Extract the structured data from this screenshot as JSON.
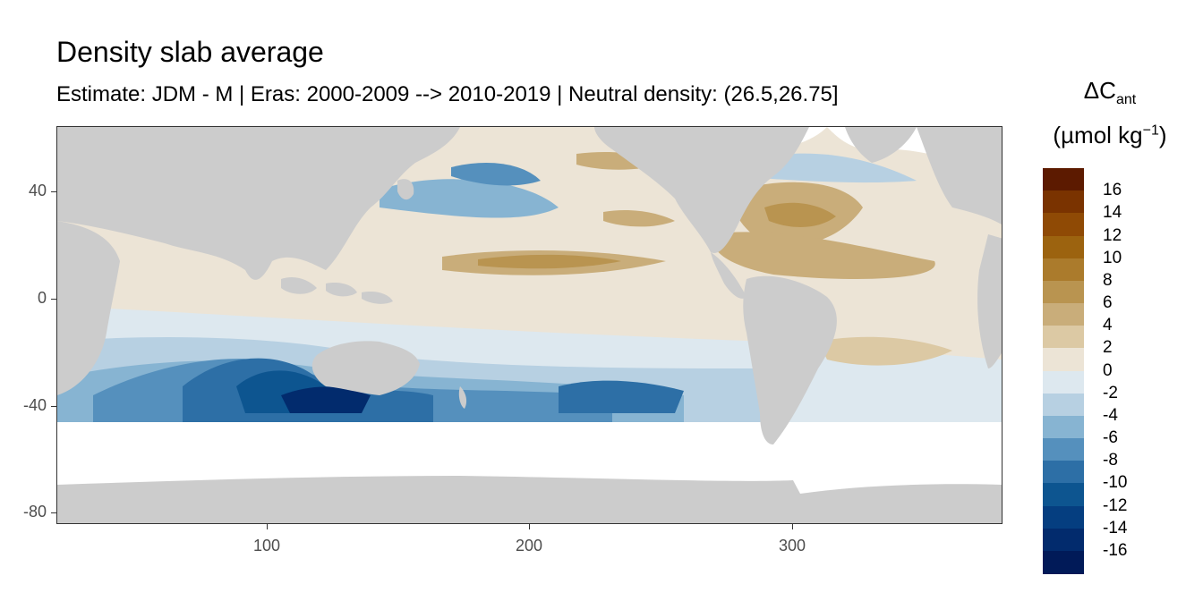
{
  "title": "Density slab average",
  "subtitle": "Estimate: JDM - M | Eras: 2000-2009 --> 2010-2019 | Neutral density: (26.5,26.75]",
  "axes": {
    "x_ticks": [
      "100",
      "200",
      "300"
    ],
    "y_ticks": [
      "40",
      "0",
      "-40",
      "-80"
    ]
  },
  "legend": {
    "title_main": "ΔC",
    "title_sub": "ant",
    "unit_open": "(µmol kg",
    "unit_exp": "−1",
    "unit_close": ")",
    "labels": [
      "16",
      "14",
      "12",
      "10",
      "8",
      "6",
      "4",
      "2",
      "0",
      "-2",
      "-4",
      "-6",
      "-8",
      "-10",
      "-12",
      "-14",
      "-16"
    ],
    "colors": [
      "#5c1a00",
      "#7a3300",
      "#8f4a05",
      "#9c630f",
      "#ab7b2c",
      "#b99450",
      "#c9ad7a",
      "#dcc9a4",
      "#ece4d6",
      "#dde8ef",
      "#b7d0e2",
      "#87b4d2",
      "#5590bd",
      "#2d6fa6",
      "#0d5590",
      "#053e80",
      "#022b6d",
      "#011a58"
    ]
  },
  "colors": {
    "land": "#cccccc",
    "no_data": "#ffffff"
  }
}
